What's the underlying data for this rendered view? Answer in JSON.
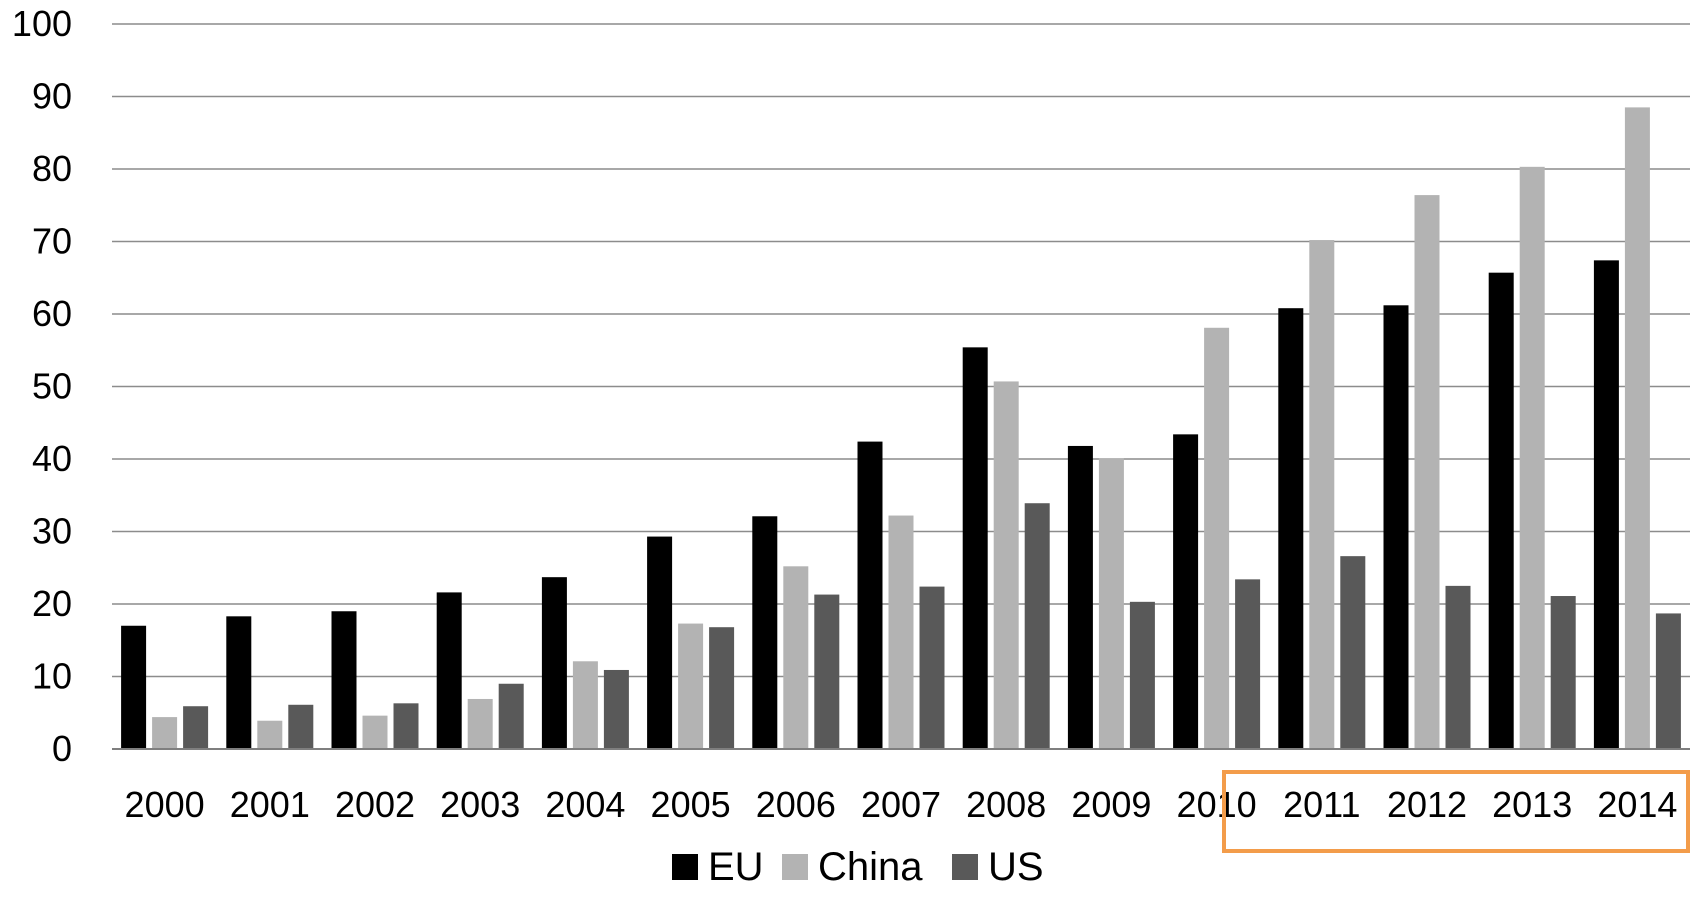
{
  "chart_data": {
    "type": "bar",
    "title": "",
    "xlabel": "",
    "ylabel": "",
    "ylim": [
      0,
      100
    ],
    "y_ticks": [
      0,
      10,
      20,
      30,
      40,
      50,
      60,
      70,
      80,
      90,
      100
    ],
    "grid": true,
    "legend_position": "bottom",
    "categories": [
      "2000",
      "2001",
      "2002",
      "2003",
      "2004",
      "2005",
      "2006",
      "2007",
      "2008",
      "2009",
      "2010",
      "2011",
      "2012",
      "2013",
      "2014"
    ],
    "series": [
      {
        "name": "EU",
        "color": "#000000",
        "values": [
          17.0,
          18.3,
          19.0,
          21.6,
          23.7,
          29.3,
          32.1,
          42.4,
          55.4,
          41.8,
          43.4,
          60.8,
          61.2,
          65.7,
          67.4
        ]
      },
      {
        "name": "China",
        "color": "#b3b3b3",
        "values": [
          4.4,
          3.9,
          4.6,
          6.9,
          12.1,
          17.3,
          25.2,
          32.2,
          50.7,
          40.1,
          58.1,
          70.2,
          76.4,
          80.3,
          88.5
        ]
      },
      {
        "name": "US",
        "color": "#595959",
        "values": [
          5.9,
          6.1,
          6.3,
          9.0,
          10.9,
          16.8,
          21.3,
          22.4,
          33.9,
          20.3,
          23.4,
          26.6,
          22.5,
          21.1,
          18.7
        ]
      }
    ],
    "annotations": [
      {
        "type": "highlight-box",
        "color": "#f39c4a",
        "categories": [
          "2010",
          "2011",
          "2012",
          "2013",
          "2014"
        ]
      }
    ],
    "colors": {
      "gridline": "#8c8c8c",
      "axis": "#7f7f7f",
      "text": "#000000"
    }
  }
}
